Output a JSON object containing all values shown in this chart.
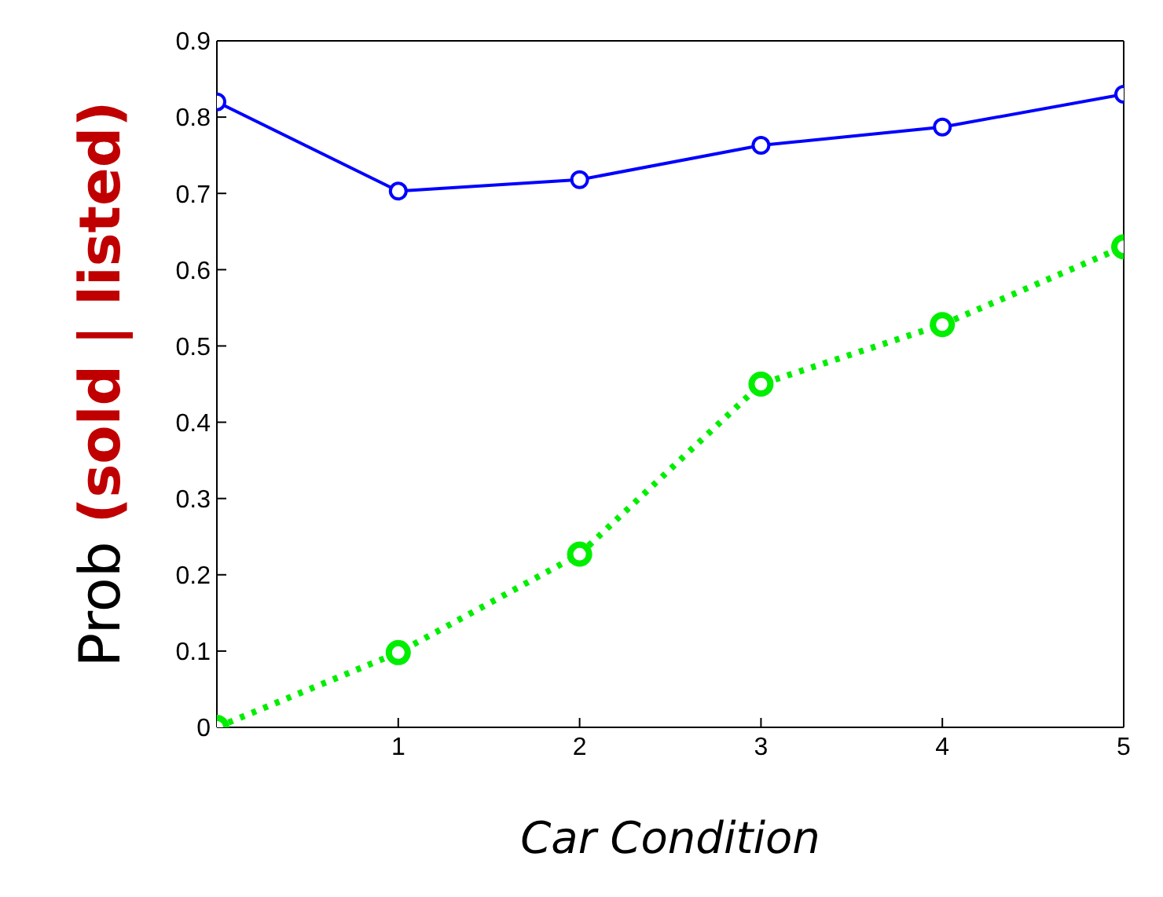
{
  "chart_data": {
    "type": "line",
    "xlabel": "Car Condition",
    "ylabel": "Prob (sold | listed)",
    "x": [
      0,
      1,
      2,
      3,
      4,
      5
    ],
    "series": [
      {
        "color": "#0000ff",
        "values": [
          0.82,
          0.703,
          0.718,
          0.763,
          0.787,
          0.83
        ],
        "line_style": "solid"
      },
      {
        "color": "#00ee00",
        "values": [
          0,
          0.098,
          0.227,
          0.45,
          0.528,
          0.63
        ],
        "line_style": "dotted"
      }
    ],
    "xlim": [
      0,
      5
    ],
    "xticks": [
      1,
      2,
      3,
      4,
      5
    ],
    "ylim": [
      0,
      0.9
    ],
    "yticks": [
      0,
      0.1,
      0.2,
      0.3,
      0.4,
      0.5,
      0.6,
      0.7,
      0.8,
      0.9
    ],
    "grid": false,
    "legend": false,
    "marker": "circle"
  }
}
